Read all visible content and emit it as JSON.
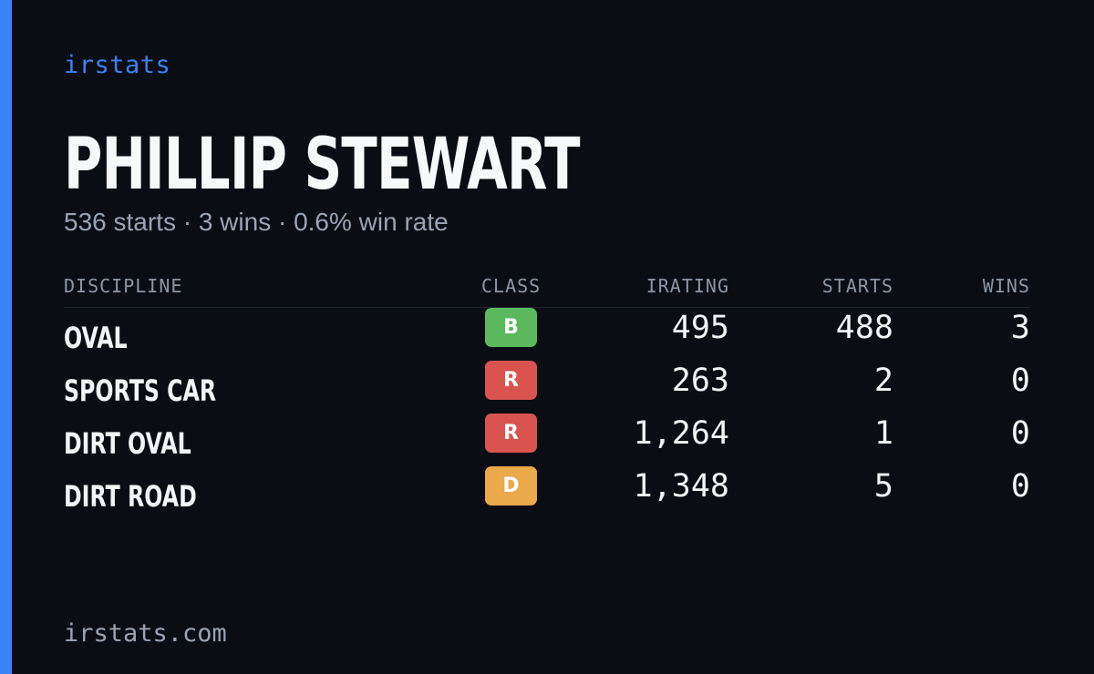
{
  "brand": "irstats",
  "driver": {
    "name": "PHILLIP STEWART",
    "summary": "536 starts · 3 wins · 0.6% win rate"
  },
  "table": {
    "headers": {
      "discipline": "DISCIPLINE",
      "class": "CLASS",
      "irating": "IRATING",
      "starts": "STARTS",
      "wins": "WINS"
    },
    "rows": [
      {
        "discipline": "OVAL",
        "class": "B",
        "class_color": "#5cb85c",
        "irating": "495",
        "starts": "488",
        "wins": "3"
      },
      {
        "discipline": "SPORTS CAR",
        "class": "R",
        "class_color": "#d9534f",
        "irating": "263",
        "starts": "2",
        "wins": "0"
      },
      {
        "discipline": "DIRT OVAL",
        "class": "R",
        "class_color": "#d9534f",
        "irating": "1,264",
        "starts": "1",
        "wins": "0"
      },
      {
        "discipline": "DIRT ROAD",
        "class": "D",
        "class_color": "#eaa94a",
        "irating": "1,348",
        "starts": "5",
        "wins": "0"
      }
    ]
  },
  "footer": "irstats.com",
  "colors": {
    "background": "#0a0d14",
    "accent": "#3b82f6",
    "muted_text": "#9aa4b5"
  }
}
